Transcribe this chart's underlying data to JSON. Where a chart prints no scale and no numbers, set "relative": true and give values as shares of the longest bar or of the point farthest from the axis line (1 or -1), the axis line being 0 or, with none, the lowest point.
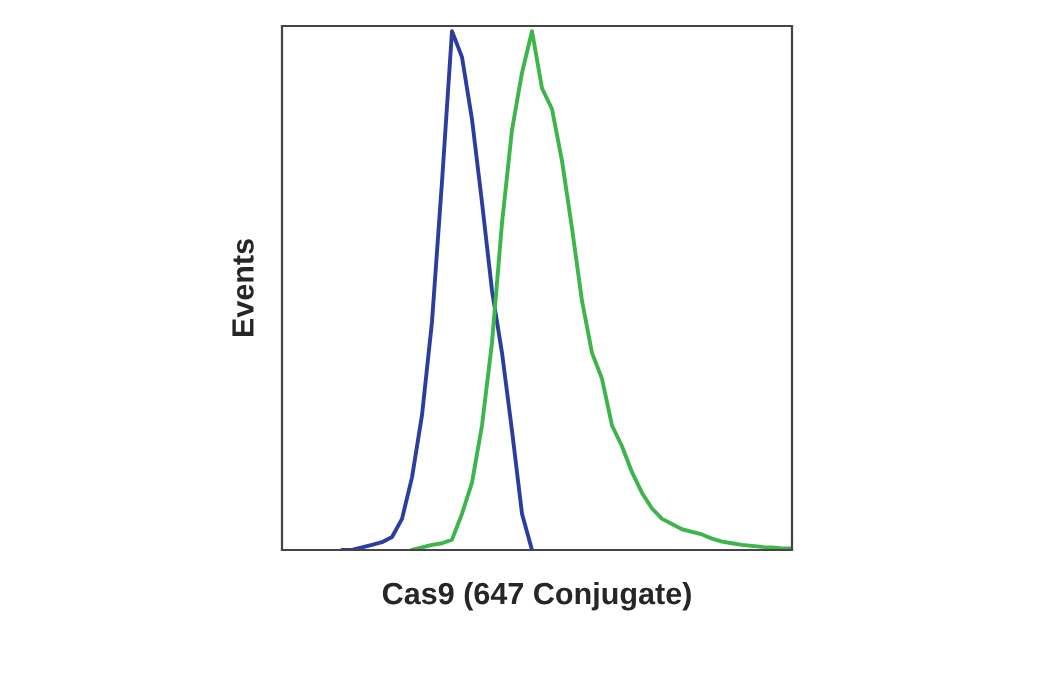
{
  "chart_data": {
    "type": "line",
    "relative": true,
    "xlabel": "Cas9 (647 Conjugate)",
    "ylabel": "Events",
    "grid": false,
    "legend": false,
    "marker": "none",
    "line_style": "solid",
    "categories": [
      null,
      null,
      null,
      null,
      null,
      null,
      null,
      null,
      null,
      null,
      null,
      null,
      null,
      null,
      null,
      null,
      null,
      null,
      null,
      null,
      null,
      null,
      null,
      null,
      null,
      null,
      null,
      null,
      null,
      null,
      null,
      null,
      null,
      null,
      null,
      null,
      null,
      null,
      null,
      null,
      null,
      null,
      null,
      null,
      null,
      null,
      null,
      null,
      null,
      null,
      null,
      null
    ],
    "series": [
      {
        "color": "#2b3ea0",
        "values": [
          null,
          null,
          null,
          null,
          null,
          null,
          0,
          0,
          0.005,
          0.01,
          0.015,
          0.025,
          0.06,
          0.14,
          0.26,
          0.44,
          0.71,
          1.0,
          0.95,
          0.83,
          0.67,
          0.5,
          0.38,
          0.23,
          0.07,
          0,
          null,
          null,
          null,
          null,
          null,
          null,
          null,
          null,
          null,
          null,
          null,
          null,
          null,
          null,
          null,
          null,
          null,
          null,
          null,
          null,
          null,
          null,
          null,
          null,
          null,
          null
        ]
      },
      {
        "color": "#3cb54a",
        "values": [
          null,
          null,
          null,
          null,
          null,
          null,
          null,
          null,
          null,
          null,
          null,
          null,
          null,
          0,
          0.005,
          0.01,
          0.013,
          0.02,
          0.07,
          0.13,
          0.24,
          0.4,
          0.63,
          0.81,
          0.92,
          1.0,
          0.89,
          0.85,
          0.75,
          0.62,
          0.48,
          0.38,
          0.33,
          0.24,
          0.2,
          0.15,
          0.11,
          0.08,
          0.06,
          0.05,
          0.04,
          0.035,
          0.03,
          0.022,
          0.016,
          0.013,
          0.01,
          0.008,
          0.006,
          0.005,
          0.003,
          0.003
        ]
      }
    ]
  }
}
